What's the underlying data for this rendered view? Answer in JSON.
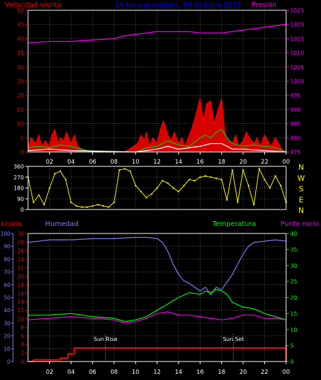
{
  "chart_data": [
    {
      "type": "line",
      "panel": "wind-pressure",
      "title": "24 hora graphdata, 04 Octubre 2013",
      "legend_left": "Velocidad viento",
      "legend_right": "Presión",
      "left_axis": {
        "range": [
          0,
          50
        ],
        "ticks": [
          "0",
          "5",
          "10",
          "15",
          "20",
          "25",
          "30",
          "35",
          "40",
          "45",
          "50"
        ]
      },
      "right_axis": {
        "range": [
          975,
          1025
        ],
        "ticks": [
          "975",
          "980",
          "985",
          "990",
          "995",
          "1000",
          "1005",
          "1010",
          "1015",
          "1020",
          "1025"
        ]
      },
      "x_ticks": [
        "02",
        "04",
        "06",
        "08",
        "10",
        "12",
        "14",
        "16",
        "18",
        "20",
        "22",
        "00"
      ],
      "grid": true,
      "series": [
        {
          "color": "#ff00ff",
          "axis": "right",
          "x": [
            0,
            2,
            4,
            6,
            8,
            9,
            10,
            11,
            12,
            13,
            14,
            15,
            16,
            17,
            18,
            19,
            20,
            21,
            22,
            23,
            24
          ],
          "values": [
            1013.5,
            1014,
            1014,
            1014.5,
            1015,
            1016,
            1016.5,
            1017,
            1017.5,
            1017.5,
            1017.5,
            1017.5,
            1017,
            1017,
            1017,
            1017.5,
            1018,
            1018.5,
            1019,
            1019.5,
            1020
          ]
        },
        {
          "color": "#ff0000",
          "axis": "left",
          "x": [
            0,
            0.3,
            0.7,
            1,
            1.3,
            1.6,
            2,
            2.2,
            2.5,
            2.8,
            3,
            3.3,
            3.6,
            4,
            4.3,
            4.6,
            5,
            5.5,
            6,
            7,
            8,
            9,
            10.2,
            10.5,
            10.8,
            11,
            11.3,
            11.6,
            12,
            12.3,
            12.6,
            13,
            13.3,
            13.6,
            14,
            14.3,
            14.6,
            15,
            15.3,
            15.6,
            16,
            16.3,
            16.6,
            17,
            17.3,
            17.6,
            18,
            18.3,
            18.6,
            19,
            19.3,
            19.6,
            20,
            20.3,
            20.6,
            21,
            21.3,
            21.6,
            22,
            22.3,
            22.6,
            23,
            23.3,
            23.6,
            24
          ],
          "values": [
            2,
            5,
            3,
            6,
            2,
            4,
            2,
            6,
            8,
            3,
            5,
            4,
            7,
            3,
            6,
            2,
            1,
            0,
            0,
            0,
            0,
            0,
            3,
            6,
            4,
            7,
            2,
            5,
            3,
            8,
            11,
            6,
            4,
            7,
            3,
            5,
            2,
            6,
            9,
            13,
            19,
            11,
            17,
            18,
            10,
            14,
            19,
            7,
            4,
            3,
            6,
            2,
            4,
            7,
            5,
            3,
            5,
            2,
            6,
            4,
            2,
            5,
            3,
            1,
            0
          ]
        },
        {
          "color": "#00c800",
          "axis": "left",
          "x": [
            0,
            1,
            2,
            3,
            4,
            5,
            6,
            8,
            10,
            11,
            12,
            13,
            14,
            15,
            16,
            16.5,
            17,
            17.5,
            18,
            18.5,
            19,
            20,
            21,
            22,
            23,
            24
          ],
          "values": [
            1.5,
            2,
            1.5,
            2.5,
            2,
            1,
            0,
            0,
            0,
            1.5,
            2,
            4,
            2.5,
            2,
            5,
            6,
            5,
            7,
            8,
            5,
            3,
            2,
            2.5,
            2,
            1.5,
            0
          ]
        },
        {
          "color": "#ffffff",
          "axis": "left",
          "x": [
            0,
            2,
            4,
            10,
            12,
            13,
            14,
            16,
            17,
            18,
            19,
            20,
            22,
            24
          ],
          "values": [
            0.5,
            1,
            0.5,
            0,
            1,
            2,
            1,
            2,
            3,
            3,
            1,
            1,
            0.5,
            0
          ]
        }
      ]
    },
    {
      "type": "scatter",
      "panel": "wind-direction",
      "left_axis": {
        "range": [
          0,
          360
        ],
        "ticks": [
          "0",
          "90",
          "180",
          "270",
          "360"
        ]
      },
      "right_labels": [
        "N",
        "W",
        "S",
        "E",
        "N"
      ],
      "grid": true,
      "series": [
        {
          "color": "#ffff00",
          "x": [
            0,
            0.5,
            1,
            1.5,
            2,
            2.5,
            3,
            3.5,
            4,
            4.5,
            5,
            5.5,
            6,
            6.5,
            7,
            7.5,
            8,
            8.5,
            9,
            9.5,
            10,
            10.5,
            11,
            11.5,
            12,
            12.5,
            13,
            13.5,
            14,
            14.5,
            15,
            15.5,
            16,
            16.5,
            17,
            17.5,
            18,
            18.5,
            19,
            19.5,
            20,
            20.5,
            21,
            21.5,
            22,
            22.5,
            23,
            23.5,
            24
          ],
          "values": [
            270,
            60,
            120,
            40,
            180,
            300,
            320,
            250,
            60,
            30,
            20,
            20,
            30,
            40,
            30,
            20,
            60,
            330,
            340,
            320,
            200,
            150,
            100,
            130,
            180,
            240,
            220,
            180,
            150,
            200,
            250,
            240,
            270,
            280,
            270,
            260,
            250,
            80,
            330,
            60,
            330,
            200,
            40,
            340,
            250,
            180,
            280,
            200,
            60
          ]
        }
      ]
    },
    {
      "type": "line",
      "panel": "humidity-temperature",
      "legend": [
        "Lluvia",
        "Humedad",
        "Temperatura",
        "Punto rocío"
      ],
      "axis_rain": {
        "range": [
          0,
          100
        ],
        "ticks": [
          "0",
          "10",
          "20",
          "30",
          "40",
          "50",
          "60",
          "70",
          "80",
          "90",
          "100"
        ]
      },
      "axis_humidity": {
        "range": [
          0,
          30
        ],
        "ticks": [
          "0",
          "2",
          "4",
          "6",
          "8",
          "10",
          "12",
          "14",
          "16",
          "18",
          "20",
          "22",
          "24",
          "26",
          "28",
          "30"
        ]
      },
      "axis_temperature": {
        "range": [
          0,
          40
        ],
        "ticks": [
          "0",
          "5",
          "10",
          "15",
          "20",
          "25",
          "30",
          "35",
          "40"
        ]
      },
      "x_ticks": [
        "02",
        "04",
        "06",
        "08",
        "10",
        "12",
        "14",
        "16",
        "18",
        "20",
        "22",
        "00"
      ],
      "annotations": [
        {
          "text": "Sun Rise",
          "x": 7.2
        },
        {
          "text": "Sun Set",
          "x": 19.1
        }
      ],
      "grid": true,
      "series": [
        {
          "color": "#8080ff",
          "axis": "rain",
          "x": [
            0,
            1,
            2,
            4,
            6,
            8,
            10,
            11,
            12,
            12.5,
            13,
            13.5,
            14,
            14.5,
            15,
            15.5,
            16,
            16.5,
            17,
            17.5,
            18,
            18.5,
            19,
            19.5,
            20,
            20.5,
            21,
            22,
            23,
            24
          ],
          "values": [
            93,
            94,
            95,
            95,
            96,
            96,
            97,
            97,
            96,
            93,
            86,
            76,
            68,
            63,
            61,
            58,
            55,
            58,
            52,
            58,
            56,
            62,
            68,
            76,
            84,
            90,
            93,
            94,
            95,
            94
          ]
        },
        {
          "color": "#00ff00",
          "axis": "temperature",
          "x": [
            0,
            2,
            4,
            6,
            8,
            9,
            10,
            11,
            12,
            13,
            14,
            15,
            16,
            16.5,
            17,
            17.5,
            18,
            18.5,
            19,
            20,
            21,
            22,
            23,
            24
          ],
          "values": [
            14.5,
            14.5,
            15,
            14,
            13.5,
            12.5,
            13,
            14,
            16,
            18,
            20,
            21.5,
            21,
            22,
            21.5,
            22.5,
            22,
            21,
            18.5,
            17,
            16.5,
            15,
            14,
            13
          ]
        },
        {
          "color": "#ff00ff",
          "axis": "temperature",
          "x": [
            0,
            2,
            4,
            6,
            8,
            9,
            10,
            11,
            12,
            13,
            14,
            15,
            16,
            17,
            18,
            19,
            20,
            21,
            22,
            23,
            24
          ],
          "values": [
            13,
            13.5,
            14,
            13.5,
            13,
            12,
            12.5,
            13.5,
            15,
            15.5,
            14.5,
            14.5,
            14,
            13.5,
            13,
            13.5,
            14.5,
            14.5,
            13.5,
            13.5,
            13
          ]
        },
        {
          "color": "#ff0000",
          "axis": "humidity",
          "x": [
            0,
            0.5,
            0.5,
            3,
            3,
            3.7,
            3.7,
            4.3,
            4.3,
            24,
            24,
            24
          ],
          "values": [
            0,
            0,
            0.4,
            0.4,
            0.8,
            0.8,
            1.8,
            1.8,
            3.2,
            3.2,
            3.9,
            0
          ]
        }
      ]
    }
  ]
}
